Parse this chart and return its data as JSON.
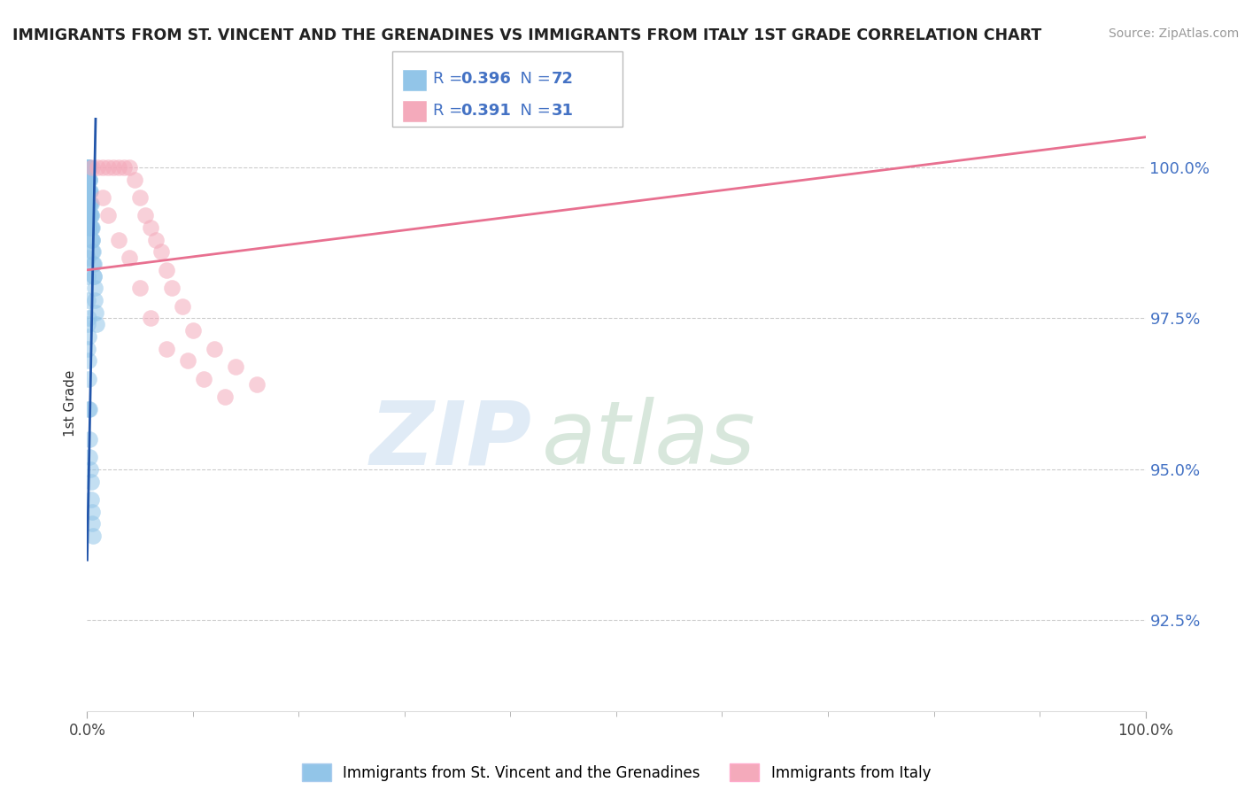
{
  "title": "IMMIGRANTS FROM ST. VINCENT AND THE GRENADINES VS IMMIGRANTS FROM ITALY 1ST GRADE CORRELATION CHART",
  "source": "Source: ZipAtlas.com",
  "ylabel": "1st Grade",
  "yticks": [
    92.5,
    95.0,
    97.5,
    100.0
  ],
  "ytick_labels": [
    "92.5%",
    "95.0%",
    "97.5%",
    "100.0%"
  ],
  "xlim": [
    0.0,
    100.0
  ],
  "ylim": [
    91.0,
    101.2
  ],
  "blue_color": "#92C5E8",
  "pink_color": "#F4AABB",
  "blue_line_color": "#2255AA",
  "pink_line_color": "#E87090",
  "legend_label1": "Immigrants from St. Vincent and the Grenadines",
  "legend_label2": "Immigrants from Italy",
  "watermark_zip": "ZIP",
  "watermark_atlas": "atlas",
  "grid_color": "#CCCCCC",
  "tick_color": "#4472C4",
  "title_color": "#222222",
  "source_color": "#999999",
  "blue_scatter_x": [
    0.05,
    0.05,
    0.05,
    0.05,
    0.05,
    0.05,
    0.05,
    0.05,
    0.05,
    0.1,
    0.1,
    0.1,
    0.1,
    0.1,
    0.1,
    0.1,
    0.15,
    0.15,
    0.15,
    0.15,
    0.15,
    0.15,
    0.2,
    0.2,
    0.2,
    0.2,
    0.2,
    0.25,
    0.25,
    0.25,
    0.25,
    0.3,
    0.3,
    0.3,
    0.35,
    0.35,
    0.35,
    0.4,
    0.4,
    0.4,
    0.45,
    0.45,
    0.5,
    0.5,
    0.55,
    0.55,
    0.6,
    0.6,
    0.65,
    0.7,
    0.75,
    0.8,
    0.85,
    0.05,
    0.05,
    0.05,
    0.05,
    0.05,
    0.1,
    0.1,
    0.1,
    0.15,
    0.15,
    0.2,
    0.2,
    0.25,
    0.3,
    0.35,
    0.4,
    0.45,
    0.5,
    0.55
  ],
  "blue_scatter_y": [
    100.0,
    100.0,
    100.0,
    100.0,
    100.0,
    99.8,
    99.6,
    99.4,
    99.2,
    100.0,
    100.0,
    99.8,
    99.6,
    99.4,
    99.2,
    99.0,
    100.0,
    99.8,
    99.6,
    99.4,
    99.2,
    99.0,
    100.0,
    99.8,
    99.6,
    99.4,
    99.2,
    99.8,
    99.6,
    99.4,
    99.2,
    99.6,
    99.4,
    99.2,
    99.4,
    99.2,
    99.0,
    99.2,
    99.0,
    98.8,
    99.0,
    98.8,
    98.8,
    98.6,
    98.6,
    98.4,
    98.4,
    98.2,
    98.2,
    98.0,
    97.8,
    97.6,
    97.4,
    98.5,
    98.2,
    97.8,
    97.4,
    97.0,
    97.5,
    97.2,
    96.8,
    96.5,
    96.0,
    96.0,
    95.5,
    95.2,
    95.0,
    94.8,
    94.5,
    94.3,
    94.1,
    93.9
  ],
  "pink_scatter_x": [
    0.5,
    1.0,
    1.5,
    2.0,
    2.5,
    3.0,
    3.5,
    4.0,
    4.5,
    5.0,
    5.5,
    6.0,
    6.5,
    7.0,
    7.5,
    8.0,
    9.0,
    10.0,
    12.0,
    14.0,
    16.0,
    1.5,
    2.0,
    3.0,
    4.0,
    5.0,
    6.0,
    7.5,
    9.5,
    11.0,
    13.0
  ],
  "pink_scatter_y": [
    100.0,
    100.0,
    100.0,
    100.0,
    100.0,
    100.0,
    100.0,
    100.0,
    99.8,
    99.5,
    99.2,
    99.0,
    98.8,
    98.6,
    98.3,
    98.0,
    97.7,
    97.3,
    97.0,
    96.7,
    96.4,
    99.5,
    99.2,
    98.8,
    98.5,
    98.0,
    97.5,
    97.0,
    96.8,
    96.5,
    96.2
  ],
  "blue_line_x0": 0.0,
  "blue_line_y0": 93.5,
  "blue_line_x1": 0.8,
  "blue_line_y1": 100.8,
  "pink_line_x0": 0.0,
  "pink_line_y0": 98.3,
  "pink_line_x1": 100.0,
  "pink_line_y1": 100.5
}
